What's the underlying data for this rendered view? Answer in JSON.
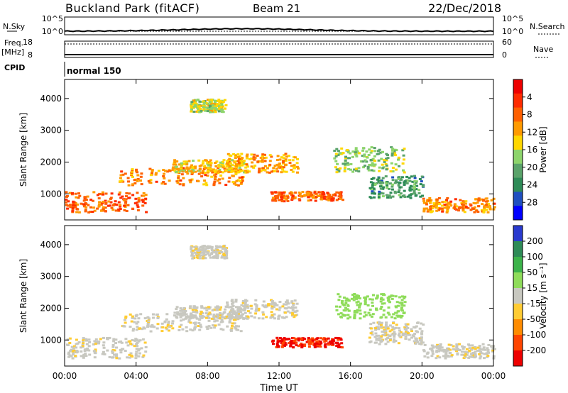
{
  "header": {
    "station": "Buckland Park (fitACF)",
    "beam": "Beam 21",
    "date": "22/Dec/2018"
  },
  "noise_panel": {
    "left_label": "N.Sky",
    "right_label": "N.Search",
    "left_ticks": [
      "10^5",
      "10^0"
    ],
    "right_ticks": [
      "10^5",
      "10^0"
    ]
  },
  "freq_panel": {
    "left_label_1": "Freq.",
    "left_label_2": "[MHz]",
    "left_ticks": [
      "18",
      "8"
    ],
    "right_ticks": [
      "60",
      "0"
    ],
    "right_label": "Nave"
  },
  "cpid_panel": {
    "label": "CPID",
    "program": "normal 150"
  },
  "colors": {
    "power": [
      "#0000ff",
      "#1f4fc0",
      "#2e8b57",
      "#5aa36a",
      "#8dd46b",
      "#ffd700",
      "#ff9a00",
      "#ff6000",
      "#ff2b00",
      "#ee0000"
    ],
    "velocity": [
      "#2a3acf",
      "#2e8b57",
      "#3cb34a",
      "#8fdc5a",
      "#c8c8c0",
      "#ffcc33",
      "#ff8c00",
      "#ff4500",
      "#ee0000"
    ]
  },
  "chart_data": [
    {
      "type": "heatmap",
      "title": "",
      "xlabel": "",
      "ylabel": "Slant Range [km]",
      "xlim": [
        "00:00",
        "00:00"
      ],
      "ylim": [
        180,
        4600
      ],
      "x_ticks": [
        "00:00",
        "04:00",
        "08:00",
        "12:00",
        "16:00",
        "20:00",
        "00:00"
      ],
      "y_ticks": [
        "1000",
        "2000",
        "3000",
        "4000"
      ],
      "colorbar": {
        "label": "Power [dB]",
        "ticks": [
          "4",
          "8",
          "12",
          "16",
          "20",
          "24",
          "28"
        ],
        "range": [
          0,
          32
        ]
      }
    },
    {
      "type": "heatmap",
      "title": "",
      "xlabel": "Time UT",
      "ylabel": "Slant Range [km]",
      "xlim": [
        "00:00",
        "00:00"
      ],
      "ylim": [
        180,
        4600
      ],
      "x_ticks": [
        "00:00",
        "04:00",
        "08:00",
        "12:00",
        "16:00",
        "20:00",
        "00:00"
      ],
      "y_ticks": [
        "1000",
        "2000",
        "3000",
        "4000"
      ],
      "colorbar": {
        "label": "Velocity [m s⁻¹]",
        "ticks": [
          "200",
          "100",
          "50",
          "15",
          "-15",
          "-50",
          "-100",
          "-200"
        ],
        "range": [
          -250,
          250
        ]
      }
    }
  ]
}
